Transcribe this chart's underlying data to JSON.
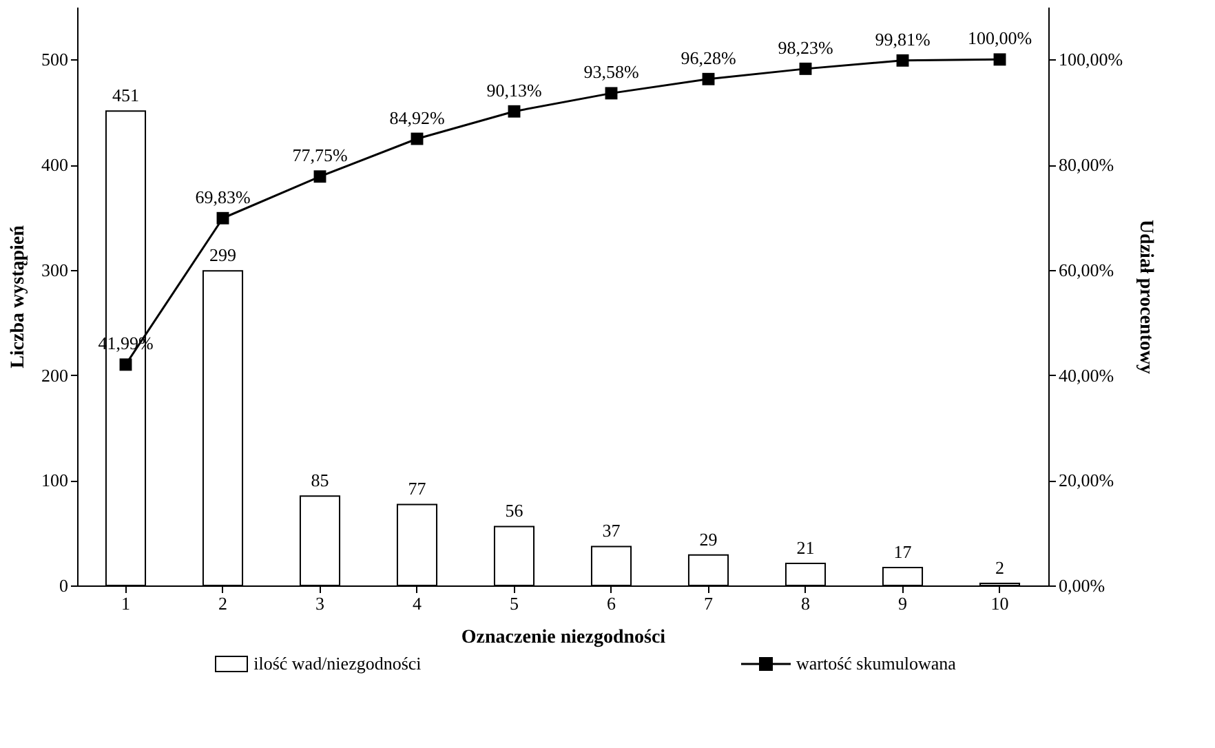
{
  "chart_data": {
    "type": "bar",
    "xlabel": "Oznaczenie niezgodności",
    "ylabel": "Liczba wystąpień",
    "y2label": "Udział procentowy",
    "categories": [
      "1",
      "2",
      "3",
      "4",
      "5",
      "6",
      "7",
      "8",
      "9",
      "10"
    ],
    "ylim": [
      0,
      550
    ],
    "yticks": [
      0,
      100,
      200,
      300,
      400,
      500
    ],
    "y2lim": [
      0,
      110
    ],
    "y2ticks": [
      {
        "value": 0,
        "label": "0,00%"
      },
      {
        "value": 20,
        "label": "20,00%"
      },
      {
        "value": 40,
        "label": "40,00%"
      },
      {
        "value": 60,
        "label": "60,00%"
      },
      {
        "value": 80,
        "label": "80,00%"
      },
      {
        "value": 100,
        "label": "100,00%"
      }
    ],
    "series": [
      {
        "name": "ilość wad/niezgodności",
        "color": "#ffffff",
        "values": [
          451,
          299,
          85,
          77,
          56,
          37,
          29,
          21,
          17,
          2
        ],
        "value_labels": [
          "451",
          "299",
          "85",
          "77",
          "56",
          "37",
          "29",
          "21",
          "17",
          "2"
        ]
      },
      {
        "name": "wartość skumulowana",
        "type": "line",
        "axis": "y2",
        "color": "#000000",
        "marker": "square",
        "values": [
          41.99,
          69.83,
          77.75,
          84.92,
          90.13,
          93.58,
          96.28,
          98.23,
          99.81,
          100
        ],
        "value_labels": [
          "41,99%",
          "69,83%",
          "77,75%",
          "84,92%",
          "90,13%",
          "93,58%",
          "96,28%",
          "98,23%",
          "99,81%",
          "100,00%"
        ]
      }
    ],
    "legend": "bottom",
    "grid": false
  }
}
